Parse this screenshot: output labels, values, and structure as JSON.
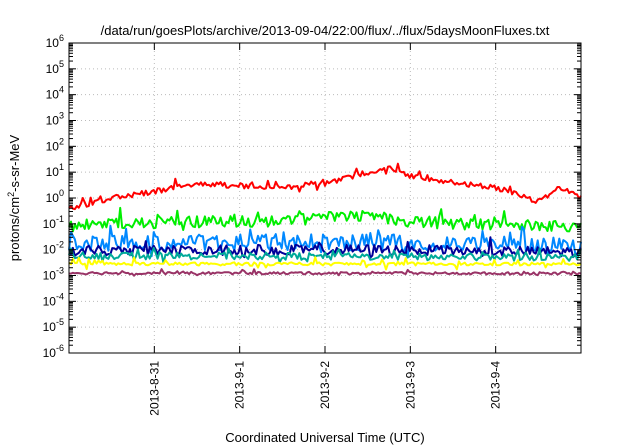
{
  "chart_data": {
    "type": "line",
    "title": "/data/run/goesPlots/archive/2013-09-04/22:00/flux/../flux/5daysMoonFluxes.txt",
    "xlabel": "Coordinated Universal Time (UTC)",
    "ylabel": {
      "base": "protons/cm",
      "sup": "2",
      "rest": "-s-sr-MeV"
    },
    "yscale": "log",
    "ylim": [
      1e-06,
      1000000
    ],
    "y_ticks": [
      {
        "base": "10",
        "exp": "-6",
        "value": 1e-06
      },
      {
        "base": "10",
        "exp": "-5",
        "value": 1e-05
      },
      {
        "base": "10",
        "exp": "-4",
        "value": 0.0001
      },
      {
        "base": "10",
        "exp": "-3",
        "value": 0.001
      },
      {
        "base": "10",
        "exp": "-2",
        "value": 0.01
      },
      {
        "base": "10",
        "exp": "-1",
        "value": 0.1
      },
      {
        "base": "10",
        "exp": "0",
        "value": 1
      },
      {
        "base": "10",
        "exp": "1",
        "value": 10
      },
      {
        "base": "10",
        "exp": "2",
        "value": 100
      },
      {
        "base": "10",
        "exp": "3",
        "value": 1000
      },
      {
        "base": "10",
        "exp": "4",
        "value": 10000
      },
      {
        "base": "10",
        "exp": "5",
        "value": 100000
      },
      {
        "base": "10",
        "exp": "6",
        "value": 1000000
      }
    ],
    "xlim": [
      "2013-08-30T00:00",
      "2013-09-05T00:00"
    ],
    "x_ticks": [
      {
        "label": "2013-8-31",
        "value": "2013-08-31T00:00"
      },
      {
        "label": "2013-9-1",
        "value": "2013-09-01T00:00"
      },
      {
        "label": "2013-9-2",
        "value": "2013-09-02T00:00"
      },
      {
        "label": "2013-9-3",
        "value": "2013-09-03T00:00"
      },
      {
        "label": "2013-9-4",
        "value": "2013-09-04T00:00"
      }
    ],
    "grid": true,
    "legend": "none",
    "series": [
      {
        "color": "#ff0000",
        "spike": 0.22,
        "noise": 0.1,
        "x": [
          "2013-08-30T00:00",
          "2013-08-30T06:00",
          "2013-08-30T12:00",
          "2013-08-31T00:00",
          "2013-08-31T12:00",
          "2013-09-01T00:00",
          "2013-09-01T12:00",
          "2013-09-02T00:00",
          "2013-09-02T12:00",
          "2013-09-02T18:00",
          "2013-09-03T00:00",
          "2013-09-03T12:00",
          "2013-09-04T00:00",
          "2013-09-04T08:00",
          "2013-09-04T12:00",
          "2013-09-04T18:00",
          "2013-09-05T00:00"
        ],
        "values": [
          0.4,
          0.6,
          1.0,
          1.8,
          3.5,
          3.0,
          2.5,
          3.5,
          10,
          15,
          7,
          4,
          2.5,
          1.2,
          0.7,
          2.5,
          1.0
        ]
      },
      {
        "color": "#00ee00",
        "spike": 0.35,
        "noise": 0.22,
        "x": [
          "2013-08-30T00:00",
          "2013-08-31T12:00",
          "2013-09-01T12:00",
          "2013-09-02T00:00",
          "2013-09-02T12:00",
          "2013-09-03T00:00",
          "2013-09-04T00:00",
          "2013-09-05T00:00"
        ],
        "values": [
          0.09,
          0.12,
          0.13,
          0.18,
          0.22,
          0.12,
          0.09,
          0.08
        ]
      },
      {
        "color": "#0088ff",
        "spike": 0.45,
        "noise": 0.32,
        "x": [
          "2013-08-30T00:00",
          "2013-09-02T12:00",
          "2013-09-05T00:00"
        ],
        "values": [
          0.018,
          0.02,
          0.014
        ]
      },
      {
        "color": "#000099",
        "spike": 0.3,
        "noise": 0.2,
        "x": [
          "2013-08-30T00:00",
          "2013-09-02T12:00",
          "2013-09-05T00:00"
        ],
        "values": [
          0.009,
          0.01,
          0.008
        ]
      },
      {
        "color": "#00aa99",
        "spike": 0.25,
        "noise": 0.14,
        "x": [
          "2013-08-30T00:00",
          "2013-09-05T00:00"
        ],
        "values": [
          0.006,
          0.005
        ]
      },
      {
        "color": "#ffff00",
        "spike": 0.2,
        "noise": 0.06,
        "x": [
          "2013-08-30T00:00",
          "2013-09-05T00:00"
        ],
        "values": [
          0.0028,
          0.0028
        ]
      },
      {
        "color": "#993366",
        "spike": 0.1,
        "noise": 0.05,
        "x": [
          "2013-08-30T00:00",
          "2013-09-05T00:00"
        ],
        "values": [
          0.00125,
          0.0012
        ]
      }
    ]
  }
}
